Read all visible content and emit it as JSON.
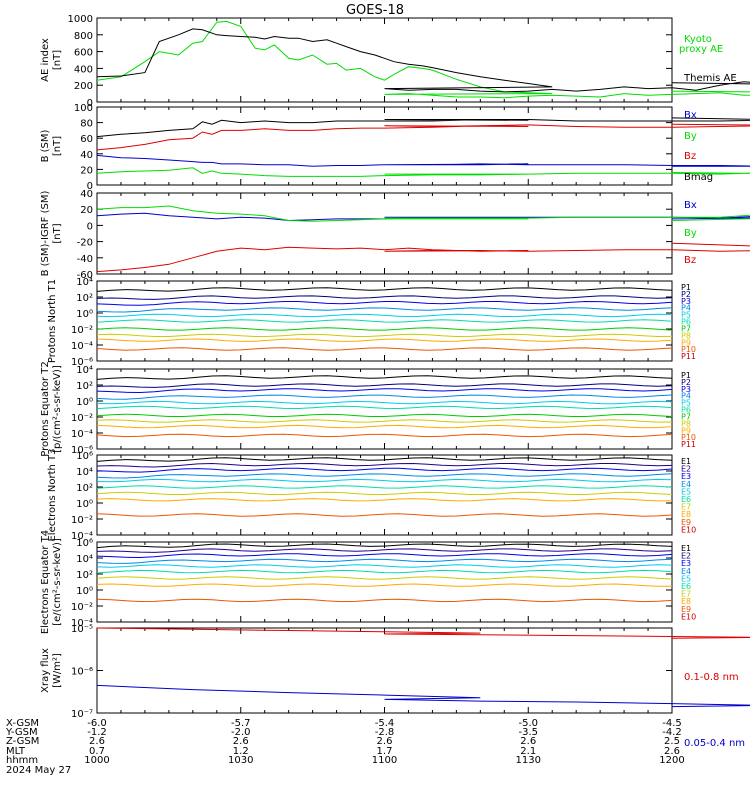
{
  "title": "GOES-18",
  "colors": {
    "black": "#000000",
    "green": "#00dd00",
    "blue": "#0000cc",
    "red": "#dd0000",
    "P": [
      "#000000",
      "#000080",
      "#0000ee",
      "#0088ee",
      "#00ccee",
      "#00ddaa",
      "#00cc00",
      "#cccc00",
      "#ffaa00",
      "#ee5500",
      "#cc0000"
    ],
    "E": [
      "#000000",
      "#220088",
      "#0000ee",
      "#0088ee",
      "#00ccee",
      "#00ddaa",
      "#cccc00",
      "#ffaa00",
      "#ee5500",
      "#cc0000"
    ]
  },
  "chart_data": [
    {
      "type": "line",
      "ylabel": "AE index [nT]",
      "ylim": [
        0,
        1000
      ],
      "yticks": [
        "0",
        "200",
        "400",
        "600",
        "800",
        "1000"
      ],
      "x": [
        1000,
        1005,
        1010,
        1013,
        1017,
        1020,
        1022,
        1025,
        1027,
        1030,
        1033,
        1035,
        1037,
        1040,
        1042,
        1045,
        1048,
        1050,
        1052,
        1055,
        1058,
        1060,
        1062,
        1065,
        1068,
        1070,
        1075,
        1080,
        1085,
        1090,
        1095,
        1100,
        1105,
        1110,
        1115,
        1120,
        1125,
        1130,
        1135,
        1140,
        1145,
        1150,
        1155,
        1160,
        1165,
        1170,
        1175,
        1180,
        1185,
        1190,
        1195,
        1200
      ],
      "series": [
        {
          "name": "Kyoto proxy AE",
          "values": [
            260,
            300,
            480,
            600,
            560,
            700,
            720,
            950,
            960,
            900,
            640,
            620,
            680,
            520,
            500,
            560,
            450,
            460,
            380,
            400,
            300,
            260,
            330,
            420,
            400,
            380,
            270,
            180,
            120,
            110,
            100,
            90,
            100,
            80,
            60,
            60,
            50,
            70,
            80,
            70,
            60,
            100,
            80,
            90,
            100,
            110,
            80,
            90,
            80,
            100,
            110,
            130
          ]
        },
        {
          "name": "Themis AE",
          "values": [
            300,
            310,
            350,
            720,
            800,
            870,
            860,
            800,
            790,
            780,
            770,
            750,
            780,
            760,
            760,
            720,
            740,
            700,
            660,
            600,
            560,
            520,
            480,
            450,
            430,
            410,
            350,
            300,
            260,
            220,
            180,
            160,
            140,
            150,
            150,
            130,
            120,
            130,
            150,
            130,
            150,
            180,
            160,
            170,
            140,
            200,
            240,
            220,
            180,
            220,
            200,
            230
          ]
        }
      ]
    },
    {
      "type": "line",
      "ylabel": "B (SM) [nT]",
      "ylim": [
        0,
        100
      ],
      "yticks": [
        "0",
        "20",
        "40",
        "60",
        "80",
        "100"
      ],
      "x": [
        1000,
        1005,
        1010,
        1015,
        1020,
        1022,
        1024,
        1026,
        1030,
        1035,
        1040,
        1045,
        1050,
        1055,
        1060,
        1070,
        1080,
        1090,
        1100,
        1110,
        1120,
        1130,
        1140,
        1150,
        1160,
        1170,
        1180,
        1190,
        1200
      ],
      "series": [
        {
          "name": "Bx",
          "values": [
            38,
            35,
            34,
            32,
            30,
            29,
            29,
            27,
            27,
            26,
            26,
            24,
            25,
            25,
            26,
            26,
            26,
            27,
            26,
            26,
            27,
            26,
            26,
            26,
            25,
            25,
            24,
            24,
            24
          ]
        },
        {
          "name": "By",
          "values": [
            15,
            17,
            18,
            19,
            22,
            15,
            18,
            15,
            14,
            12,
            11,
            11,
            11,
            11,
            12,
            13,
            13,
            14,
            14,
            14,
            14,
            14,
            15,
            15,
            15,
            14,
            16,
            14,
            16
          ]
        },
        {
          "name": "Bz",
          "values": [
            45,
            48,
            52,
            58,
            60,
            68,
            65,
            70,
            70,
            72,
            70,
            70,
            72,
            73,
            73,
            74,
            76,
            75,
            76,
            75,
            76,
            77,
            75,
            74,
            74,
            75,
            76,
            76,
            78
          ]
        },
        {
          "name": "Bmag",
          "values": [
            62,
            65,
            67,
            70,
            72,
            81,
            78,
            83,
            80,
            82,
            80,
            80,
            82,
            82,
            82,
            82,
            84,
            83,
            84,
            84,
            84,
            84,
            82,
            82,
            82,
            82,
            83,
            83,
            86
          ]
        }
      ]
    },
    {
      "type": "line",
      "ylabel": "B (SM)-IGRF (SM) [nT]",
      "ylim": [
        -60,
        40
      ],
      "yticks": [
        "-60",
        "-40",
        "-20",
        "0",
        "20",
        "40"
      ],
      "x": [
        1000,
        1005,
        1010,
        1015,
        1020,
        1025,
        1030,
        1035,
        1040,
        1045,
        1050,
        1055,
        1060,
        1065,
        1070,
        1080,
        1090,
        1100,
        1110,
        1120,
        1130,
        1140,
        1150,
        1160,
        1170,
        1180,
        1190,
        1200
      ],
      "series": [
        {
          "name": "Bx",
          "values": [
            12,
            14,
            15,
            12,
            10,
            8,
            10,
            9,
            6,
            7,
            8,
            8,
            8,
            9,
            9,
            9,
            10,
            10,
            10,
            10,
            10,
            10,
            10,
            10,
            9,
            12,
            10,
            8
          ]
        },
        {
          "name": "By",
          "values": [
            20,
            22,
            22,
            24,
            18,
            15,
            14,
            12,
            6,
            5,
            6,
            7,
            8,
            8,
            8,
            8,
            8,
            9,
            9,
            9,
            9,
            10,
            10,
            10,
            10,
            14,
            10,
            6
          ]
        },
        {
          "name": "Bz",
          "values": [
            -57,
            -55,
            -52,
            -48,
            -40,
            -32,
            -28,
            -30,
            -27,
            -28,
            -29,
            -28,
            -30,
            -28,
            -30,
            -32,
            -31,
            -32,
            -31,
            -31,
            -32,
            -31,
            -30,
            -30,
            -32,
            -31,
            -28,
            -22
          ]
        }
      ]
    },
    {
      "type": "line",
      "ylabel": "Protons North T1",
      "scale": "log",
      "ylim": [
        1e-06,
        10000.0
      ],
      "yticks": [
        "10⁻⁶",
        "10⁻⁴",
        "10⁻²",
        "10⁰",
        "10²",
        "10⁴"
      ],
      "legend": [
        "P1",
        "P2",
        "P3",
        "P4",
        "P5",
        "P6",
        "P7",
        "P8",
        "P9",
        "P10",
        "P11"
      ],
      "logvalues": [
        3.0,
        2.0,
        1.3,
        0.5,
        -0.3,
        -1.0,
        -2.0,
        -2.8,
        -3.4,
        -4.5,
        null
      ]
    },
    {
      "type": "line",
      "ylabel": "Protons Equator T2 [p/(cm²-s-sr-keV)]",
      "scale": "log",
      "ylim": [
        1e-06,
        10000.0
      ],
      "yticks": [
        "10⁻⁶",
        "10⁻⁴",
        "10⁻²",
        "10⁰",
        "10²",
        "10⁴"
      ],
      "legend": [
        "P1",
        "P2",
        "P3",
        "P4",
        "P5",
        "P6",
        "P7",
        "P8",
        "P9",
        "P10",
        "P11"
      ],
      "logvalues": [
        3.0,
        2.0,
        1.4,
        0.6,
        -0.2,
        -0.8,
        -1.8,
        -2.5,
        -3.2,
        -4.3,
        null
      ]
    },
    {
      "type": "line",
      "ylabel": "Electrons North T3",
      "scale": "log",
      "ylim": [
        0.0001,
        1000000.0
      ],
      "yticks": [
        "10⁻⁴",
        "10⁻²",
        "10⁰",
        "10²",
        "10⁴",
        "10⁶"
      ],
      "legend": [
        "E1",
        "E2",
        "E3",
        "E4",
        "E5",
        "E6",
        "E7",
        "E8",
        "E9",
        "E10"
      ],
      "logvalues": [
        5.5,
        4.8,
        4.2,
        3.5,
        2.8,
        2.0,
        1.2,
        0.4,
        -1.5,
        null
      ]
    },
    {
      "type": "line",
      "ylabel": "Electrons Equator T4 [e/(cm²-s-sr-keV)]",
      "scale": "log",
      "ylim": [
        0.0001,
        1000000.0
      ],
      "yticks": [
        "10⁻⁴",
        "10⁻²",
        "10⁰",
        "10²",
        "10⁴",
        "10⁶"
      ],
      "legend": [
        "E1",
        "E2",
        "E3",
        "E4",
        "E5",
        "E6",
        "E7",
        "E8",
        "E9",
        "E10"
      ],
      "logvalues": [
        5.6,
        5.0,
        4.4,
        3.7,
        3.0,
        2.3,
        1.5,
        0.6,
        -1.3,
        null
      ]
    },
    {
      "type": "line",
      "ylabel": "Xray flux [W/m²]",
      "scale": "log",
      "ylim": [
        1e-07,
        1e-05
      ],
      "yticks": [
        "10⁻⁷",
        "10⁻⁶",
        "10⁻⁵"
      ],
      "x": [
        1000,
        1020,
        1040,
        1060,
        1080,
        1100,
        1120,
        1140,
        1160,
        1180,
        1200
      ],
      "series": [
        {
          "name": "0.1-0.8 nm",
          "logvalues": [
            -5.0,
            -5.03,
            -5.06,
            -5.09,
            -5.12,
            -5.14,
            -5.16,
            -5.18,
            -5.2,
            -5.22,
            -5.24
          ]
        },
        {
          "name": "0.05-0.4 nm",
          "logvalues": [
            -6.35,
            -6.45,
            -6.52,
            -6.58,
            -6.64,
            -6.68,
            -6.72,
            -6.74,
            -6.78,
            -6.82,
            -6.85
          ]
        }
      ]
    }
  ],
  "x_axis": {
    "rows": [
      "X-GSM",
      "Y-GSM",
      "Z-GSM",
      "MLT",
      "hhmm"
    ],
    "date": "2024 May 27",
    "ticks": [
      {
        "hhmm": "1000",
        "values": [
          "-6.0",
          "-1.2",
          "2.6",
          "0.7",
          "1000"
        ]
      },
      {
        "hhmm": "1030",
        "values": [
          "-5.7",
          "-2.0",
          "2.6",
          "1.2",
          "1030"
        ]
      },
      {
        "hhmm": "1100",
        "values": [
          "-5.4",
          "-2.8",
          "2.6",
          "1.7",
          "1100"
        ]
      },
      {
        "hhmm": "1130",
        "values": [
          "-5.0",
          "-3.5",
          "2.6",
          "2.1",
          "1130"
        ]
      },
      {
        "hhmm": "1200",
        "values": [
          "-4.5",
          "-4.2",
          "2.5",
          "2.6",
          "1200"
        ]
      }
    ]
  },
  "legend_text": {
    "ae": [
      "Kyoto",
      "proxy AE",
      "Themis AE"
    ],
    "b": [
      "Bx",
      "By",
      "Bz",
      "Bmag"
    ],
    "db": [
      "Bx",
      "By",
      "Bz"
    ],
    "xray": [
      "0.1-0.8 nm",
      "0.05-0.4 nm"
    ]
  }
}
